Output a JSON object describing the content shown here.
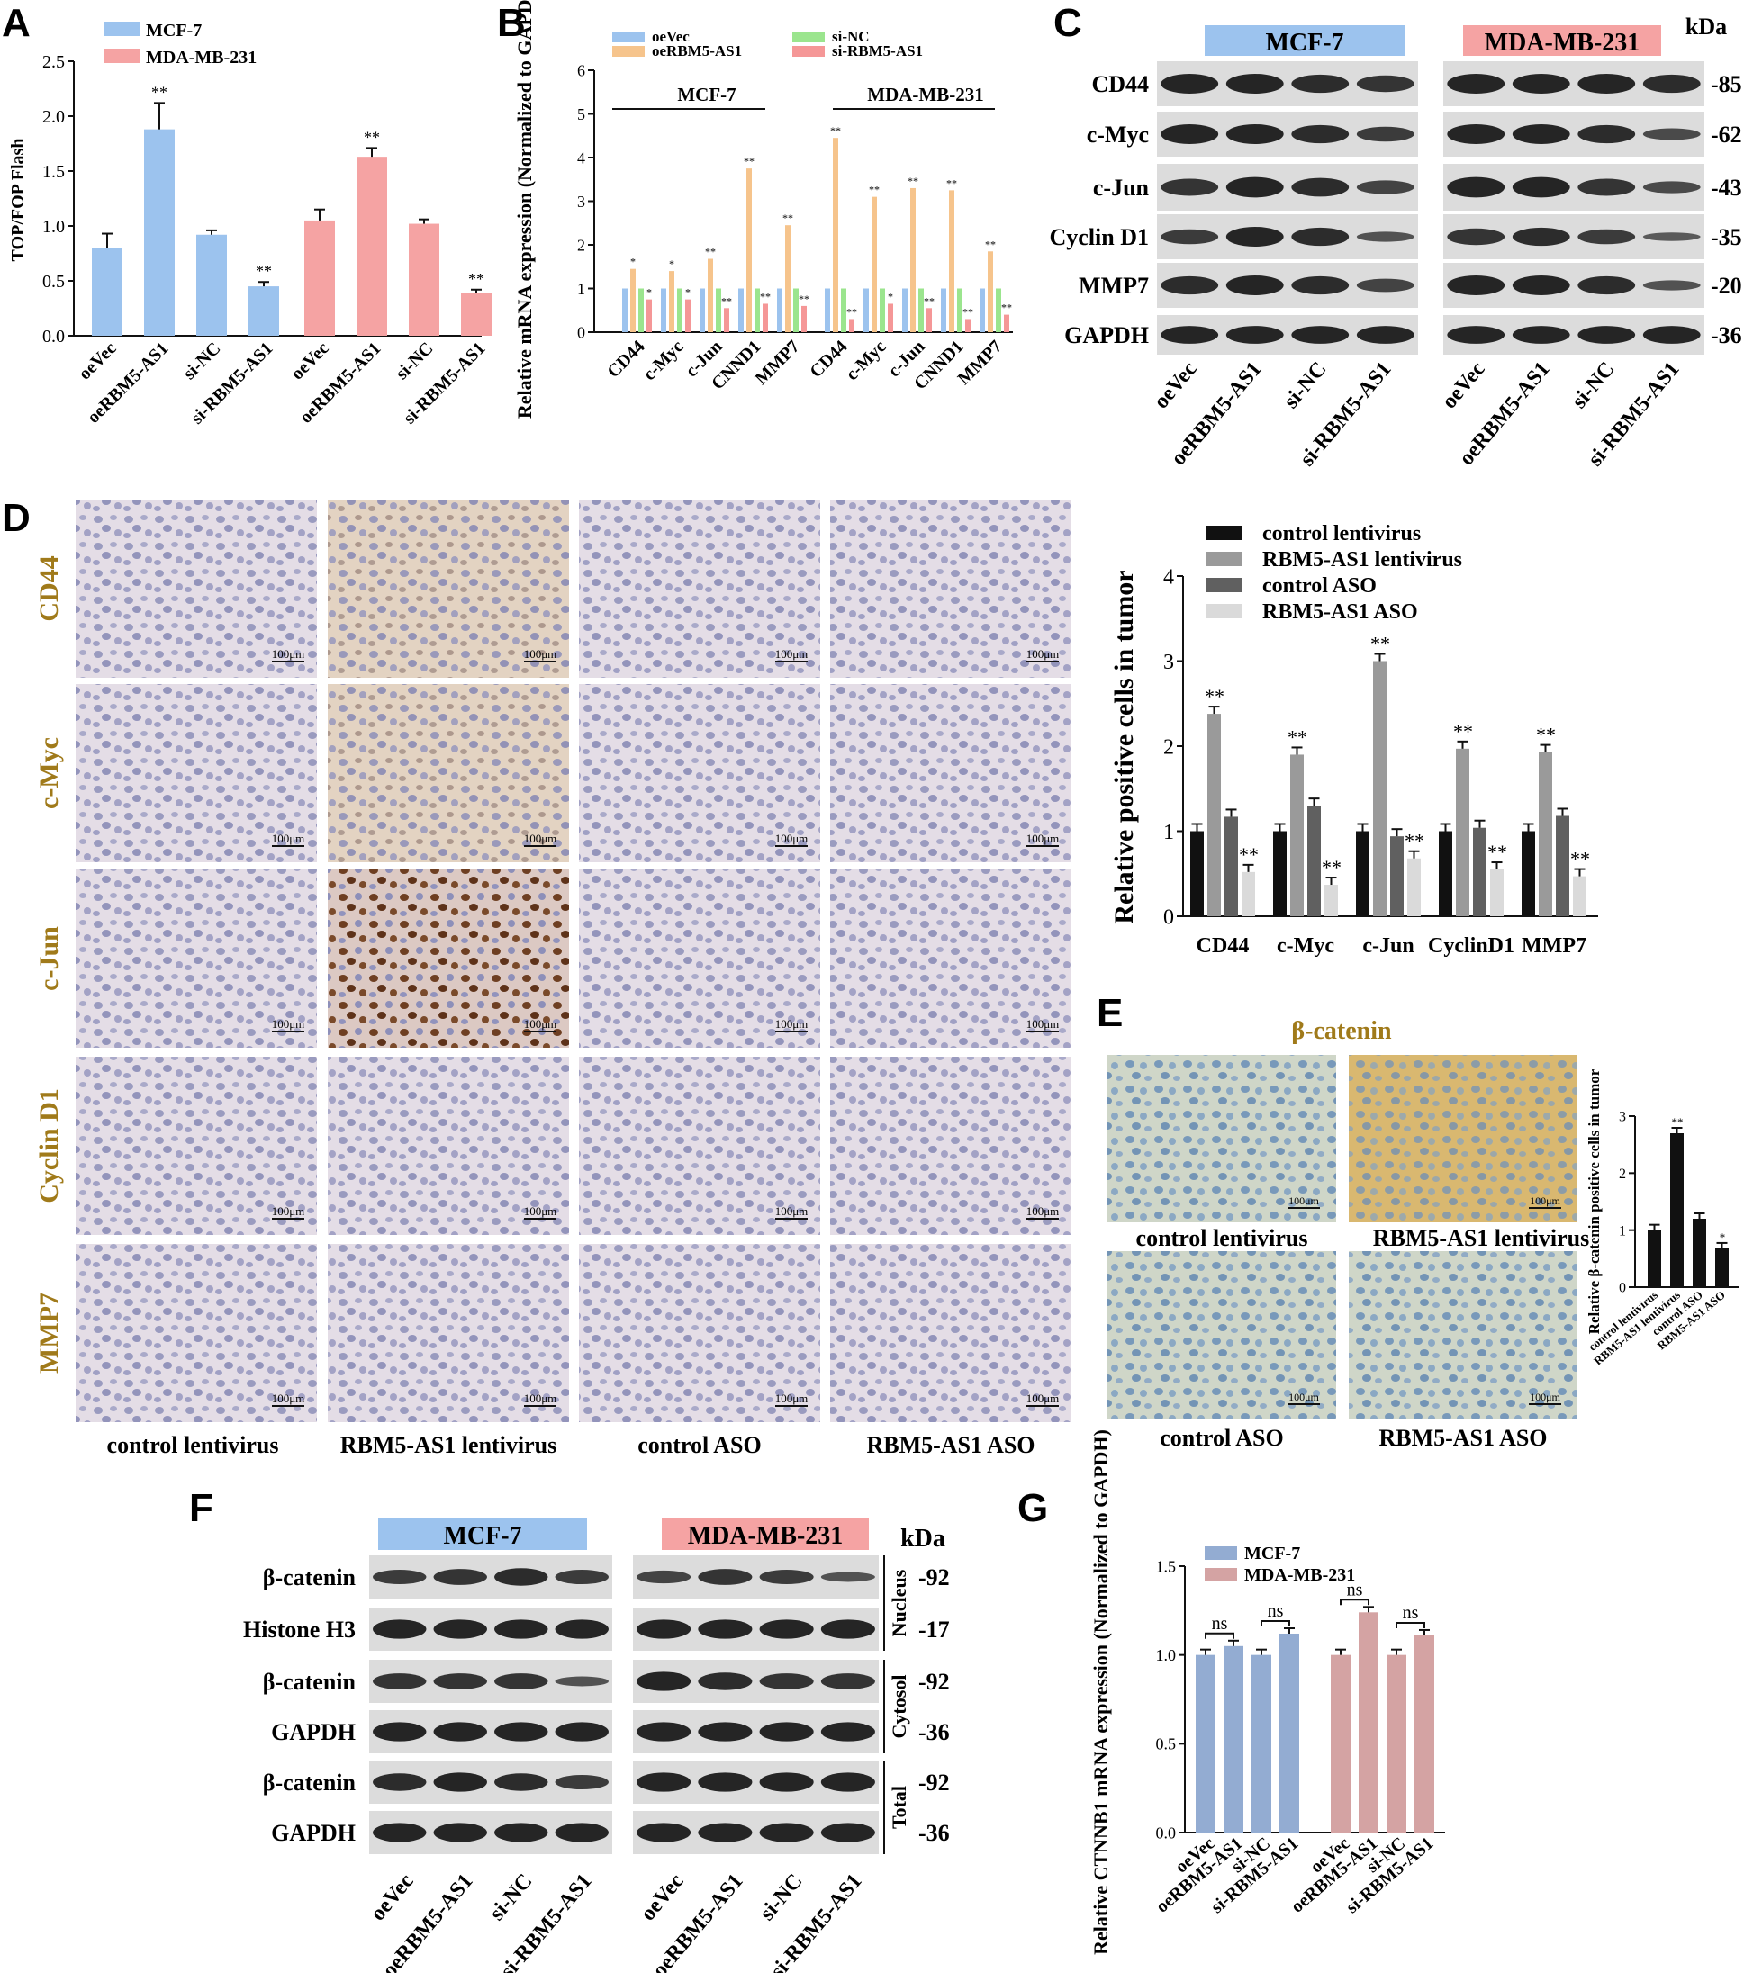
{
  "panels": {
    "A": "A",
    "B": "B",
    "C": "C",
    "D": "D",
    "E": "E",
    "F": "F",
    "G": "G"
  },
  "colors": {
    "mcf": "#9cc3ee",
    "mda": "#f5a3a3",
    "blot_bg": "#dcdcdc",
    "band": "#1a1a1a",
    "oevec": "#9cc3ee",
    "oerbm": "#f6c48c",
    "sinc": "#9be58e",
    "sirbm": "#f59797",
    "ihc_bg": "#e3dbe6",
    "ihc_cell": "#8f90b8",
    "ihc_brown": "#8a5a2c",
    "gold": "#a07a1a"
  },
  "conditions": [
    "oeVec",
    "oeRBM5-AS1",
    "si-NC",
    "si-RBM5-AS1"
  ],
  "chart_data": [
    {
      "panel": "A",
      "type": "bar",
      "ylabel": "TOP/FOP Flash",
      "yticks": [
        "0.0",
        "0.5",
        "1.0",
        "1.5",
        "2.0",
        "2.5"
      ],
      "ylim": [
        0,
        2.5
      ],
      "categories": [
        "oeVec",
        "oeRBM5-AS1",
        "si-NC",
        "si-RBM5-AS1"
      ],
      "series": [
        {
          "name": "MCF-7",
          "values": [
            0.8,
            1.88,
            0.92,
            0.45
          ],
          "errors": [
            0.13,
            0.24,
            0.04,
            0.04
          ],
          "sig": [
            "",
            "**",
            "",
            "**"
          ]
        },
        {
          "name": "MDA-MB-231",
          "values": [
            1.05,
            1.63,
            1.02,
            0.39
          ],
          "errors": [
            0.1,
            0.08,
            0.04,
            0.03
          ],
          "sig": [
            "",
            "**",
            "",
            "**"
          ]
        }
      ]
    },
    {
      "panel": "B",
      "type": "bar",
      "ylabel": "Relative mRNA expression (Normalized to GAPDH)",
      "yticks": [
        "0",
        "1",
        "2",
        "3",
        "4",
        "5",
        "6"
      ],
      "ylim": [
        0,
        6
      ],
      "legend": [
        "oeVec",
        "oeRBM5-AS1",
        "si-NC",
        "si-RBM5-AS1"
      ],
      "groups": [
        "MCF-7",
        "MDA-MB-231"
      ],
      "categories": [
        "CD44",
        "c-Myc",
        "c-Jun",
        "CNND1",
        "MMP7"
      ],
      "series": [
        {
          "group": "MCF-7",
          "values": [
            [
              1.0,
              1.45,
              1.0,
              0.75
            ],
            [
              1.0,
              1.4,
              1.0,
              0.75
            ],
            [
              1.0,
              1.68,
              1.0,
              0.55
            ],
            [
              1.0,
              3.75,
              1.0,
              0.65
            ],
            [
              1.0,
              2.45,
              1.0,
              0.6
            ]
          ],
          "sig": [
            [
              "",
              "*",
              "",
              "*"
            ],
            [
              "",
              "*",
              "",
              "*"
            ],
            [
              "",
              "**",
              "",
              "**"
            ],
            [
              "",
              "**",
              "",
              "**"
            ],
            [
              "",
              "**",
              "",
              "**"
            ]
          ]
        },
        {
          "group": "MDA-MB-231",
          "values": [
            [
              1.0,
              4.45,
              1.0,
              0.3
            ],
            [
              1.0,
              3.1,
              1.0,
              0.65
            ],
            [
              1.0,
              3.3,
              1.0,
              0.55
            ],
            [
              1.0,
              3.25,
              1.0,
              0.3
            ],
            [
              1.0,
              1.85,
              1.0,
              0.4
            ]
          ],
          "sig": [
            [
              "",
              "**",
              "",
              "**"
            ],
            [
              "",
              "**",
              "",
              "*"
            ],
            [
              "",
              "**",
              "",
              "**"
            ],
            [
              "",
              "**",
              "",
              "**"
            ],
            [
              "",
              "**",
              "",
              "**"
            ]
          ]
        }
      ]
    },
    {
      "panel": "D",
      "type": "bar",
      "ylabel": "Relative positive cells in tumor",
      "yticks": [
        "0",
        "1",
        "2",
        "3",
        "4"
      ],
      "ylim": [
        0,
        4
      ],
      "categories": [
        "CD44",
        "c-Myc",
        "c-Jun",
        "CyclinD1",
        "MMP7"
      ],
      "series": [
        {
          "name": "control lentivirus",
          "color": "#111111",
          "values": [
            1.0,
            1.0,
            1.0,
            1.0,
            1.0
          ],
          "sig": [
            "",
            "",
            "",
            "",
            ""
          ]
        },
        {
          "name": "RBM5-AS1 lentivirus",
          "color": "#9a9a9a",
          "values": [
            2.38,
            1.9,
            3.0,
            1.97,
            1.93
          ],
          "sig": [
            "**",
            "**",
            "**",
            "**",
            "**"
          ]
        },
        {
          "name": "control ASO",
          "color": "#606060",
          "values": [
            1.17,
            1.3,
            0.94,
            1.04,
            1.18
          ],
          "sig": [
            "",
            "",
            "",
            "",
            ""
          ]
        },
        {
          "name": "RBM5-AS1 ASO",
          "color": "#dadada",
          "values": [
            0.52,
            0.37,
            0.68,
            0.55,
            0.47
          ],
          "sig": [
            "**",
            "**",
            "**",
            "**",
            "**"
          ]
        }
      ]
    },
    {
      "panel": "E",
      "type": "bar",
      "ylabel": "Relative β-catenin positive cells in tumor",
      "yticks": [
        "0",
        "1",
        "2",
        "3"
      ],
      "ylim": [
        0,
        3
      ],
      "categories": [
        "control lentivirus",
        "RBM5-AS1 lentivirus",
        "control ASO",
        "RBM5-AS1 ASO"
      ],
      "values": [
        1.0,
        2.7,
        1.2,
        0.68
      ],
      "sig": [
        "",
        "**",
        "",
        "*"
      ]
    },
    {
      "panel": "G",
      "type": "bar",
      "ylabel": "Relative CTNNB1 mRNA expression (Normalized to GAPDH)",
      "yticks": [
        "0.0",
        "0.5",
        "1.0",
        "1.5"
      ],
      "ylim": [
        0,
        1.5
      ],
      "categories": [
        "oeVec",
        "oeRBM5-AS1",
        "si-NC",
        "si-RBM5-AS1"
      ],
      "series": [
        {
          "name": "MCF-7",
          "values": [
            1.0,
            1.05,
            1.0,
            1.12
          ]
        },
        {
          "name": "MDA-MB-231",
          "values": [
            1.0,
            1.24,
            1.0,
            1.11
          ]
        }
      ],
      "annotation": "ns"
    }
  ],
  "blots": {
    "C": {
      "cells": [
        "MCF-7",
        "MDA-MB-231"
      ],
      "unit": "kDa",
      "proteins": [
        "CD44",
        "c-Myc",
        "c-Jun",
        "Cyclin D1",
        "MMP7",
        "GAPDH"
      ],
      "kda": [
        "-85",
        "-62",
        "-43",
        "-35",
        "-20",
        "-36"
      ]
    },
    "F": {
      "cells": [
        "MCF-7",
        "MDA-MB-231"
      ],
      "unit": "kDa",
      "proteins": [
        "β-catenin",
        "Histone H3",
        "β-catenin",
        "GAPDH",
        "β-catenin",
        "GAPDH"
      ],
      "kda": [
        "-92",
        "-17",
        "-92",
        "-36",
        "-92",
        "-36"
      ],
      "fractions": [
        "Nucleus",
        "Cytosol",
        "Total"
      ]
    }
  },
  "ihc": {
    "markers": [
      "CD44",
      "c-Myc",
      "c-Jun",
      "Cyclin D1",
      "MMP7"
    ],
    "columns": [
      "control lentivirus",
      "RBM5-AS1 lentivirus",
      "control ASO",
      "RBM5-AS1 ASO"
    ],
    "scale": "100μm"
  },
  "panelE": {
    "title": "β-catenin",
    "labels": [
      "control lentivirus",
      "RBM5-AS1 lentivirus",
      "control ASO",
      "RBM5-AS1 ASO"
    ],
    "scales": [
      "100μm",
      "100μm",
      "100μm",
      "100μm"
    ]
  }
}
